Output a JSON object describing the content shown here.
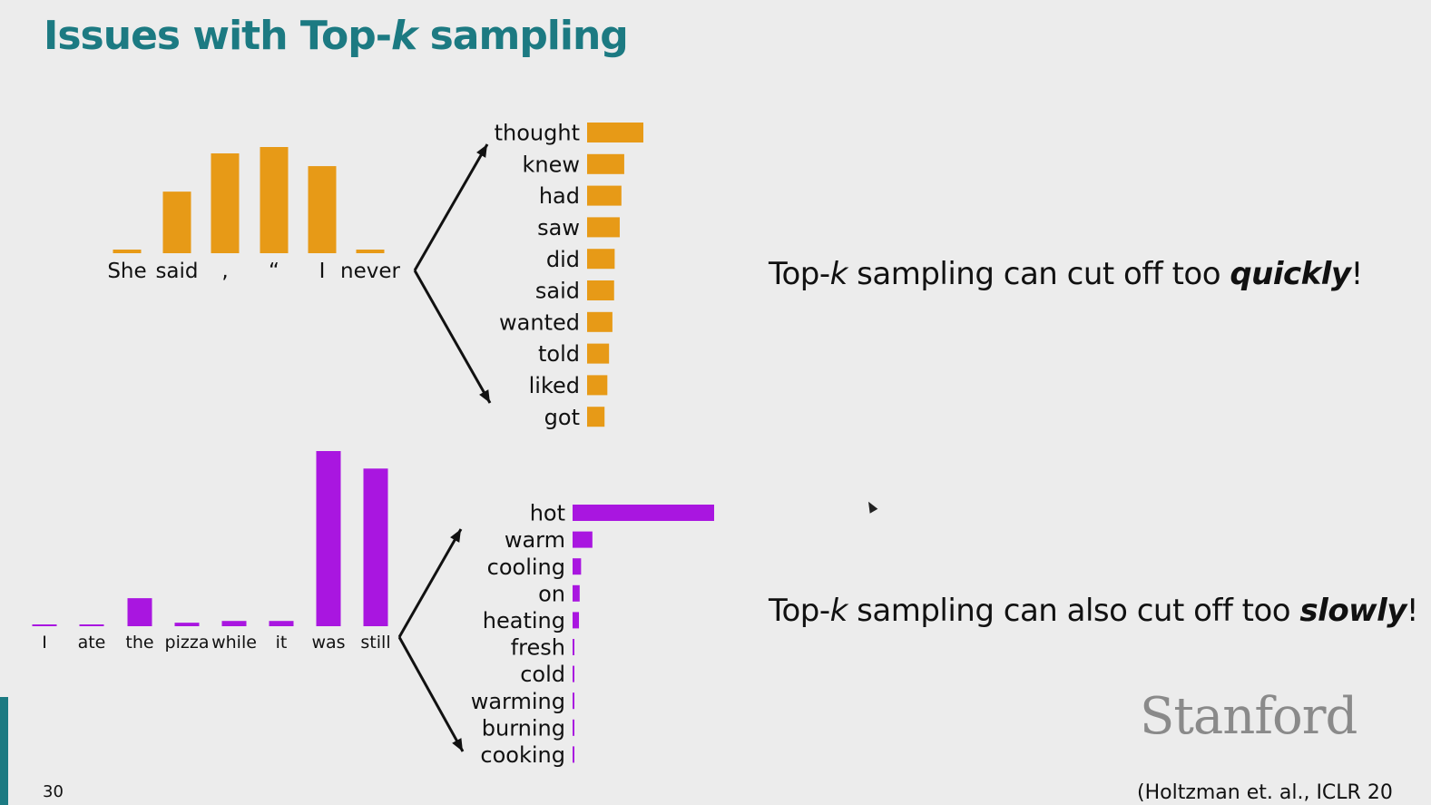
{
  "title": {
    "prefix": "Issues with Top-",
    "k": "k",
    "suffix": " sampling"
  },
  "subtitles": {
    "quick": {
      "prefix": "Top-",
      "k": "k",
      "middle": " sampling can cut off too ",
      "emph": "quickly",
      "suffix": "!"
    },
    "slow": {
      "prefix": "Top-",
      "k": "k",
      "middle": " sampling can also cut off too ",
      "emph": "slowly",
      "suffix": "!"
    }
  },
  "logo": "Stanford",
  "citation": "(Holtzman et. al., ICLR 20",
  "slide_number": "30",
  "colors": {
    "orange": "#e79a17",
    "purple": "#a916e0",
    "title": "#1c7a82"
  },
  "chart_data": [
    {
      "type": "bar",
      "group": "top-context",
      "categories": [
        "She",
        "said",
        ",",
        "“",
        "I",
        "never"
      ],
      "values": [
        0.03,
        0.58,
        0.94,
        1.0,
        0.82,
        0.03
      ],
      "ylim": [
        0,
        1
      ]
    },
    {
      "type": "bar",
      "orientation": "horizontal",
      "group": "top-next",
      "categories": [
        "thought",
        "knew",
        "had",
        "saw",
        "did",
        "said",
        "wanted",
        "told",
        "liked",
        "got"
      ],
      "values": [
        1.0,
        0.66,
        0.61,
        0.58,
        0.49,
        0.48,
        0.45,
        0.39,
        0.36,
        0.31
      ],
      "xlim": [
        0,
        1
      ]
    },
    {
      "type": "bar",
      "group": "bottom-context",
      "categories": [
        "I",
        "ate",
        "the",
        "pizza",
        "while",
        "it",
        "was",
        "still"
      ],
      "values": [
        0.01,
        0.01,
        0.16,
        0.02,
        0.03,
        0.03,
        1.0,
        0.9
      ],
      "ylim": [
        0,
        1
      ]
    },
    {
      "type": "bar",
      "orientation": "horizontal",
      "group": "bottom-next",
      "categories": [
        "hot",
        "warm",
        "cooling",
        "on",
        "heating",
        "fresh",
        "cold",
        "warming",
        "burning",
        "cooking"
      ],
      "values": [
        1.0,
        0.14,
        0.06,
        0.05,
        0.045,
        0.01,
        0.01,
        0.01,
        0.01,
        0.01
      ],
      "xlim": [
        0,
        1
      ]
    }
  ]
}
